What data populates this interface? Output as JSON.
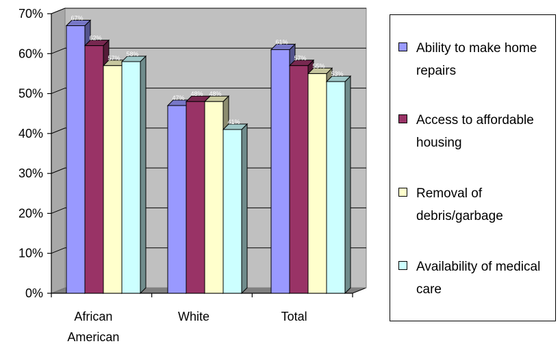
{
  "chart_data": {
    "type": "bar",
    "categories": [
      "African American",
      "White",
      "Total"
    ],
    "series": [
      {
        "name": "Ability to make home repairs",
        "color": "#9999ff",
        "values": [
          67,
          47,
          61
        ],
        "labels": [
          "67%",
          "47%",
          "61%"
        ]
      },
      {
        "name": "Access to affordable housing",
        "color": "#993366",
        "values": [
          62,
          48,
          57
        ],
        "labels": [
          "62%",
          "48%",
          "57%"
        ]
      },
      {
        "name": "Removal of debris/garbage",
        "color": "#ffffcc",
        "values": [
          57,
          48,
          55
        ],
        "labels": [
          "57%",
          "48%",
          "55%"
        ]
      },
      {
        "name": "Availability of medical care",
        "color": "#ccffff",
        "values": [
          58,
          41,
          53
        ],
        "labels": [
          "58%",
          "41%",
          "53%"
        ]
      }
    ],
    "ylim": [
      0,
      70
    ],
    "yticks": [
      "0%",
      "10%",
      "20%",
      "30%",
      "40%",
      "50%",
      "60%",
      "70%"
    ],
    "grid": true,
    "legend_position": "right",
    "three_d": true,
    "plot_background": "#c0c0c0"
  },
  "legend": {
    "items": [
      {
        "label": "Ability to make home repairs",
        "color": "#9999ff"
      },
      {
        "label": "Access to affordable housing",
        "color": "#993366"
      },
      {
        "label": "Removal of debris/garbage",
        "color": "#ffffcc"
      },
      {
        "label": "Availability of medical care",
        "color": "#ccffff"
      }
    ]
  }
}
